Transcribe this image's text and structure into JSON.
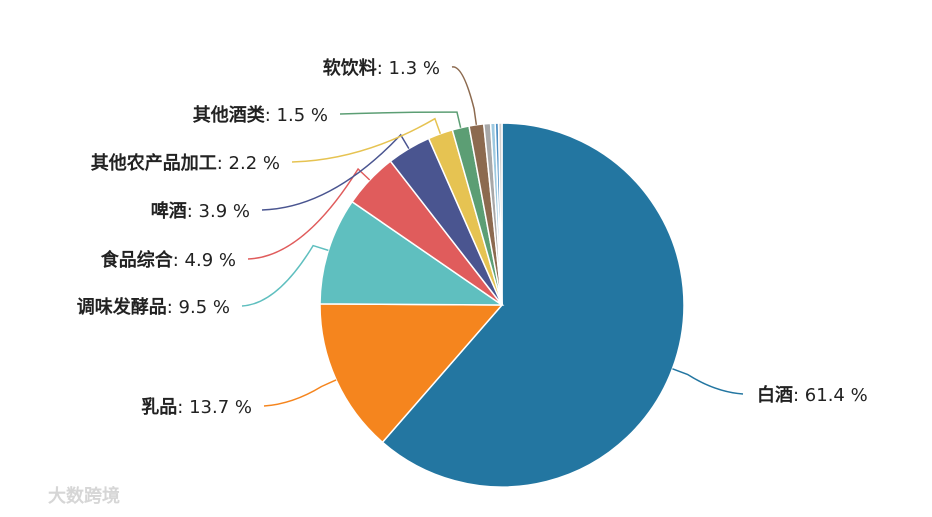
{
  "chart_data": {
    "type": "pie",
    "categories": [
      "白酒",
      "乳品",
      "调味发酵品",
      "食品综合",
      "啤酒",
      "其他农产品加工",
      "其他酒类",
      "软饮料",
      null,
      null,
      null,
      null
    ],
    "values": [
      61.4,
      13.7,
      9.5,
      4.9,
      3.9,
      2.2,
      1.5,
      1.3,
      0.6,
      0.4,
      0.3,
      0.3
    ],
    "value_labels": [
      "61.4 %",
      "13.7 %",
      "9.5 %",
      "4.9 %",
      "3.9 %",
      "2.2 %",
      "1.5 %",
      "1.3 %",
      null,
      null,
      null,
      null
    ],
    "label_separator": ": ",
    "colors": [
      "#2376a1",
      "#f5851e",
      "#5fbfbf",
      "#e05c5c",
      "#4a5590",
      "#e6c352",
      "#5c9e74",
      "#8c6a4f",
      "#a8a8a8",
      "#9ec9e0",
      "#4d8fc4",
      "#cfcfcf"
    ],
    "watermark": "大数跨境"
  }
}
